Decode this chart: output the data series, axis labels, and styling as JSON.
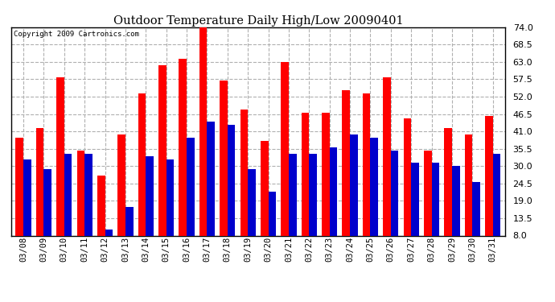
{
  "title": "Outdoor Temperature Daily High/Low 20090401",
  "copyright": "Copyright 2009 Cartronics.com",
  "dates": [
    "03/08",
    "03/09",
    "03/10",
    "03/11",
    "03/12",
    "03/13",
    "03/14",
    "03/15",
    "03/16",
    "03/17",
    "03/18",
    "03/19",
    "03/20",
    "03/21",
    "03/22",
    "03/23",
    "03/24",
    "03/25",
    "03/26",
    "03/27",
    "03/28",
    "03/29",
    "03/30",
    "03/31"
  ],
  "highs": [
    39,
    42,
    58,
    35,
    27,
    40,
    53,
    62,
    64,
    74,
    57,
    48,
    38,
    63,
    47,
    47,
    54,
    53,
    58,
    45,
    35,
    42,
    40,
    46
  ],
  "lows": [
    32,
    29,
    34,
    34,
    10,
    17,
    33,
    32,
    39,
    44,
    43,
    29,
    22,
    34,
    34,
    36,
    40,
    39,
    35,
    31,
    31,
    30,
    25,
    34
  ],
  "high_color": "#ff0000",
  "low_color": "#0000cc",
  "bg_color": "#ffffff",
  "plot_bg_color": "#ffffff",
  "grid_color": "#b0b0b0",
  "yticks": [
    8.0,
    13.5,
    19.0,
    24.5,
    30.0,
    35.5,
    41.0,
    46.5,
    52.0,
    57.5,
    63.0,
    68.5,
    74.0
  ],
  "ymin": 8.0,
  "ymax": 74.0,
  "bar_width": 0.38
}
